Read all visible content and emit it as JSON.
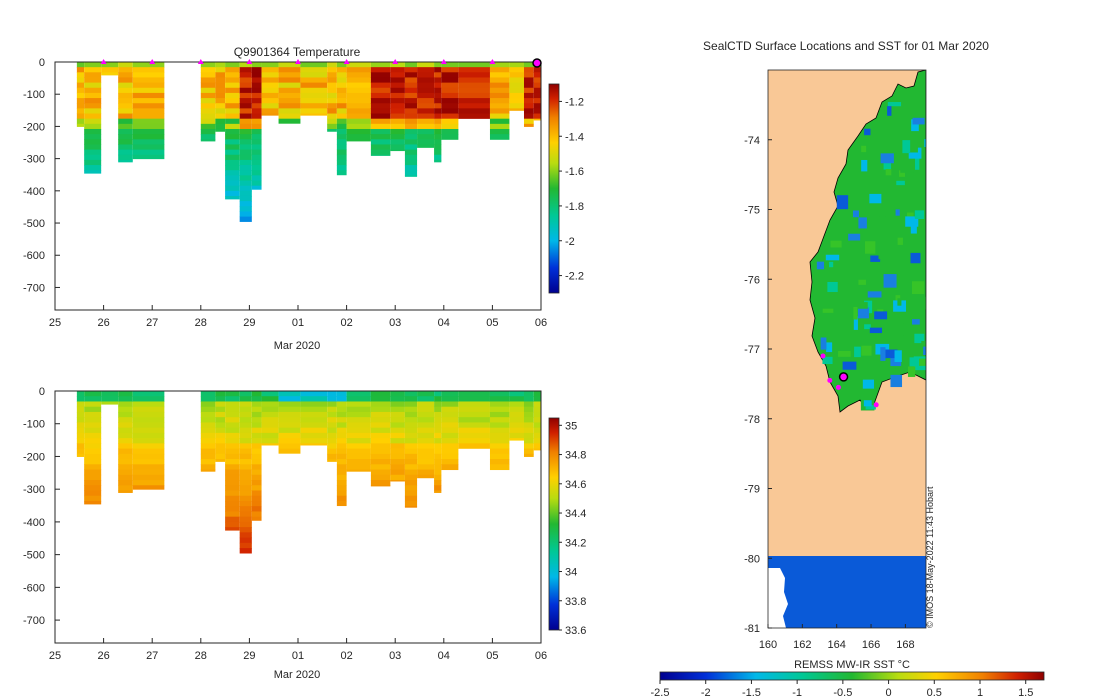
{
  "chart_data": [
    {
      "type": "heatmap",
      "name": "temperature-section",
      "title": "Q9901364  Temperature",
      "xlabel": "Mar 2020",
      "x_ticks": [
        "25",
        "26",
        "27",
        "28",
        "29",
        "01",
        "02",
        "03",
        "04",
        "05",
        "06"
      ],
      "y_ticks": [
        "0",
        "-100",
        "-200",
        "-300",
        "-400",
        "-500",
        "-600",
        "-700"
      ],
      "ylim": [
        -770,
        0
      ],
      "xlim": [
        25,
        35
      ],
      "colorbar": {
        "ticks": [
          "-1.2",
          "-1.4",
          "-1.6",
          "-1.8",
          "-2",
          "-2.2"
        ],
        "range": [
          -2.3,
          -1.1
        ]
      },
      "profile_markers_day": [
        26,
        27,
        28,
        29,
        30,
        31,
        32,
        33,
        34,
        35
      ],
      "profiles": [
        {
          "x0": 25.45,
          "x1": 25.6,
          "depth": -200
        },
        {
          "x0": 25.6,
          "x1": 25.95,
          "depth": -345
        },
        {
          "x0": 25.95,
          "x1": 26.3,
          "depth": -40
        },
        {
          "x0": 26.3,
          "x1": 26.6,
          "depth": -310
        },
        {
          "x0": 26.6,
          "x1": 27.25,
          "depth": -300
        },
        {
          "x0": 28.0,
          "x1": 28.3,
          "depth": -245
        },
        {
          "x0": 28.3,
          "x1": 28.5,
          "depth": -215
        },
        {
          "x0": 28.5,
          "x1": 28.8,
          "depth": -425
        },
        {
          "x0": 28.8,
          "x1": 29.05,
          "depth": -495
        },
        {
          "x0": 29.05,
          "x1": 29.25,
          "depth": -395
        },
        {
          "x0": 29.25,
          "x1": 29.6,
          "depth": -165
        },
        {
          "x0": 29.6,
          "x1": 30.05,
          "depth": -190
        },
        {
          "x0": 30.05,
          "x1": 30.6,
          "depth": -165
        },
        {
          "x0": 30.6,
          "x1": 30.8,
          "depth": -215
        },
        {
          "x0": 30.8,
          "x1": 31.0,
          "depth": -350
        },
        {
          "x0": 31.0,
          "x1": 31.5,
          "depth": -245
        },
        {
          "x0": 31.5,
          "x1": 31.9,
          "depth": -290
        },
        {
          "x0": 31.9,
          "x1": 32.2,
          "depth": -275
        },
        {
          "x0": 32.2,
          "x1": 32.45,
          "depth": -355
        },
        {
          "x0": 32.45,
          "x1": 32.8,
          "depth": -265
        },
        {
          "x0": 32.8,
          "x1": 32.95,
          "depth": -310
        },
        {
          "x0": 32.95,
          "x1": 33.3,
          "depth": -240
        },
        {
          "x0": 33.3,
          "x1": 33.95,
          "depth": -175
        },
        {
          "x0": 33.95,
          "x1": 34.35,
          "depth": -240
        },
        {
          "x0": 34.35,
          "x1": 34.65,
          "depth": -150
        },
        {
          "x0": 34.65,
          "x1": 34.85,
          "depth": -200
        },
        {
          "x0": 34.85,
          "x1": 35.0,
          "depth": -180
        }
      ]
    },
    {
      "type": "heatmap",
      "name": "salinity-section",
      "title": "",
      "xlabel": "Mar 2020",
      "x_ticks": [
        "25",
        "26",
        "27",
        "28",
        "29",
        "01",
        "02",
        "03",
        "04",
        "05",
        "06"
      ],
      "y_ticks": [
        "0",
        "-100",
        "-200",
        "-300",
        "-400",
        "-500",
        "-600",
        "-700"
      ],
      "ylim": [
        -770,
        0
      ],
      "xlim": [
        25,
        35
      ],
      "colorbar": {
        "ticks": [
          "35",
          "34.8",
          "34.6",
          "34.4",
          "34.2",
          "34",
          "33.8",
          "33.6"
        ],
        "range": [
          33.6,
          35.05
        ]
      }
    },
    {
      "type": "heatmap",
      "name": "sst-map",
      "title": "SealCTD Surface Locations and SST for 01 Mar 2020",
      "xlabel": "REMSS MW-IR SST °C",
      "x_ticks": [
        "160",
        "162",
        "164",
        "166",
        "168"
      ],
      "y_ticks": [
        "-74",
        "-75",
        "-76",
        "-77",
        "-78",
        "-79",
        "-80",
        "-81"
      ],
      "xlim": [
        160,
        169.2
      ],
      "ylim": [
        -81,
        -73
      ],
      "colorbar": {
        "ticks": [
          "-2.5",
          "-2",
          "-1.5",
          "-1",
          "-0.5",
          "0",
          "0.5",
          "1",
          "1.5"
        ],
        "range": [
          -2.5,
          1.7
        ]
      },
      "current_location": {
        "lon": 164.4,
        "lat": -77.4
      },
      "track_points": [
        {
          "lon": 163.2,
          "lat": -77.1
        },
        {
          "lon": 163.6,
          "lat": -77.45
        },
        {
          "lon": 164.1,
          "lat": -77.55
        },
        {
          "lon": 166.3,
          "lat": -77.8
        }
      ]
    }
  ],
  "credit": "© IMOS 18-May-2022 11:43 Hobart"
}
